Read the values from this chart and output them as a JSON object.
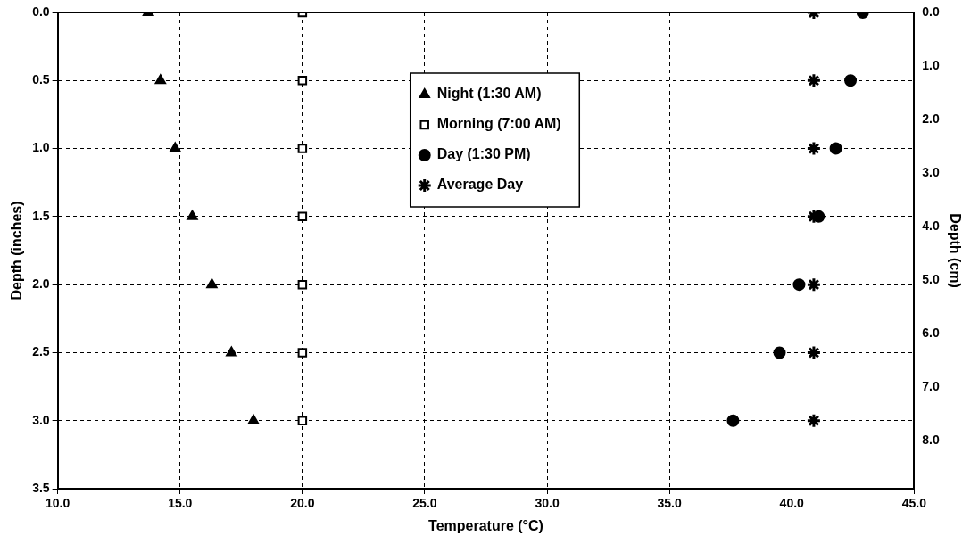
{
  "chart_data": {
    "type": "scatter",
    "xlabel": "Temperature (°C)",
    "ylabel": "Depth (inches)",
    "y2label": "Depth (cm)",
    "xlim": [
      10,
      45
    ],
    "xticks": [
      {
        "value": 10,
        "label": "10.0"
      },
      {
        "value": 15,
        "label": "15.0"
      },
      {
        "value": 20,
        "label": "20.0"
      },
      {
        "value": 25,
        "label": "25.0"
      },
      {
        "value": 30,
        "label": "30.0"
      },
      {
        "value": 35,
        "label": "35.0"
      },
      {
        "value": 40,
        "label": "40.0"
      },
      {
        "value": 45,
        "label": "45.0"
      }
    ],
    "ylim": [
      3.5,
      0
    ],
    "yticks": [
      {
        "value": 0,
        "label": "0.0"
      },
      0.5,
      {
        "value": 1,
        "label": "1.0"
      },
      1.5,
      {
        "value": 2,
        "label": "2.0"
      },
      2.5,
      {
        "value": 3,
        "label": "3.0"
      },
      3.5
    ],
    "y2lim": [
      8.9,
      0
    ],
    "y2ticks": [
      {
        "value": 0,
        "label": "0.0"
      },
      {
        "value": 1,
        "label": "1.0"
      },
      {
        "value": 2,
        "label": "2.0"
      },
      {
        "value": 3,
        "label": "3.0"
      },
      {
        "value": 4,
        "label": "4.0"
      },
      {
        "value": 5,
        "label": "5.0"
      },
      {
        "value": 6,
        "label": "6.0"
      },
      {
        "value": 7,
        "label": "7.0"
      },
      {
        "value": 8,
        "label": "8.0"
      }
    ],
    "grid": true,
    "legend": "top",
    "line_style": "dashed",
    "series": [
      {
        "name": "Night (1:30 AM)",
        "color": "#000000",
        "marker": "triangle",
        "x": [
          13.7,
          14.2,
          14.8,
          15.5,
          16.3,
          17.1,
          18.0
        ],
        "values": [
          0,
          0.5,
          1,
          1.5,
          2,
          2.5,
          3
        ]
      },
      {
        "name": "Morning (7:00 AM)",
        "color": "#000000",
        "marker": "square",
        "x": [
          20,
          20,
          20,
          20,
          20,
          20,
          20
        ],
        "values": [
          0,
          0.5,
          1,
          1.5,
          2,
          2.5,
          3
        ]
      },
      {
        "name": "Day (1:30 PM)",
        "color": "#000000",
        "marker": "circle",
        "x": [
          42.9,
          42.4,
          41.8,
          41.1,
          40.3,
          39.5,
          37.6
        ],
        "values": [
          0,
          0.5,
          1,
          1.5,
          2,
          2.5,
          3
        ]
      },
      {
        "name": "Average Day",
        "color": "#000000",
        "marker": "cross",
        "x": [
          40.9,
          40.9,
          40.9,
          40.9,
          40.9,
          40.9,
          40.9
        ],
        "values": [
          0,
          0.5,
          1,
          1.5,
          2,
          2.5,
          3
        ]
      }
    ]
  }
}
